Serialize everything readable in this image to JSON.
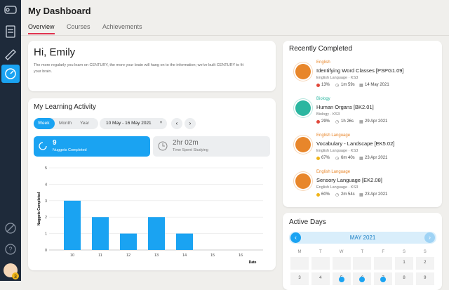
{
  "sidebar": {
    "badge": "3"
  },
  "header": {
    "title": "My Dashboard",
    "tabs": [
      "Overview",
      "Courses",
      "Achievements"
    ]
  },
  "welcome": {
    "title": "Hi, Emily",
    "text": "The more regularly you learn on CENTURY, the more your brain will hang on to the information; we've built CENTURY to fit your brain."
  },
  "learning_activity": {
    "title": "My Learning Activity",
    "periods": [
      "Week",
      "Month",
      "Year"
    ],
    "date_range": "10 May - 16 May 2021",
    "nuggets": {
      "value": 9,
      "label": "Nuggets Completed"
    },
    "time": {
      "value": "2hr 02m",
      "label": "Time Spent Studying"
    },
    "chart": {
      "type": "bar",
      "categories": [
        "10",
        "11",
        "12",
        "13",
        "14",
        "15",
        "16"
      ],
      "values": [
        3,
        2,
        1,
        2,
        1,
        0,
        0
      ],
      "color": "#1aa3f2",
      "ylim": [
        0,
        5
      ],
      "yticks": [
        0,
        1,
        2,
        3,
        4,
        5
      ],
      "grid": true,
      "x_label": "Date",
      "y_label": "Nuggets Completed"
    }
  },
  "recently_completed": {
    "title": "Recently Completed",
    "items": [
      {
        "subject": "English",
        "color": "#e8862a",
        "title": "Identifying Word Classes [PSPG1.09]",
        "course": "English Language · KS3",
        "score": "13%",
        "score_color": "#e0473a",
        "time": "1m 59s",
        "date": "14 May 2021"
      },
      {
        "subject": "Biology",
        "color": "#2bb6a0",
        "title": "Human Organs [BK2.01]",
        "course": "Biology · KS3",
        "score": "29%",
        "score_color": "#e0473a",
        "time": "1h 26s",
        "date": "29 Apr 2021"
      },
      {
        "subject": "English Language",
        "color": "#e8862a",
        "title": "Vocabulary - Landscape [EK5.02]",
        "course": "English Language · KS3",
        "score": "67%",
        "score_color": "#f0b418",
        "time": "6m 40s",
        "date": "23 Apr 2021"
      },
      {
        "subject": "English Language",
        "color": "#e8862a",
        "title": "Sensory Language [EK2.08]",
        "course": "English Language · KS3",
        "score": "60%",
        "score_color": "#f0b418",
        "time": "2m 54s",
        "date": "23 Apr 2021"
      }
    ]
  },
  "active_days": {
    "title": "Active Days",
    "month": "MAY 2021",
    "weekdays": [
      "M",
      "T",
      "W",
      "T",
      "F",
      "S",
      "S"
    ],
    "days": [
      {
        "day": 1
      },
      {
        "day": 2
      },
      {
        "day": 3
      },
      {
        "day": 4
      },
      {
        "day": 5,
        "active": true
      },
      {
        "day": 6,
        "active": true
      },
      {
        "day": 7,
        "active": true
      },
      {
        "day": 8
      },
      {
        "day": 9
      }
    ]
  }
}
